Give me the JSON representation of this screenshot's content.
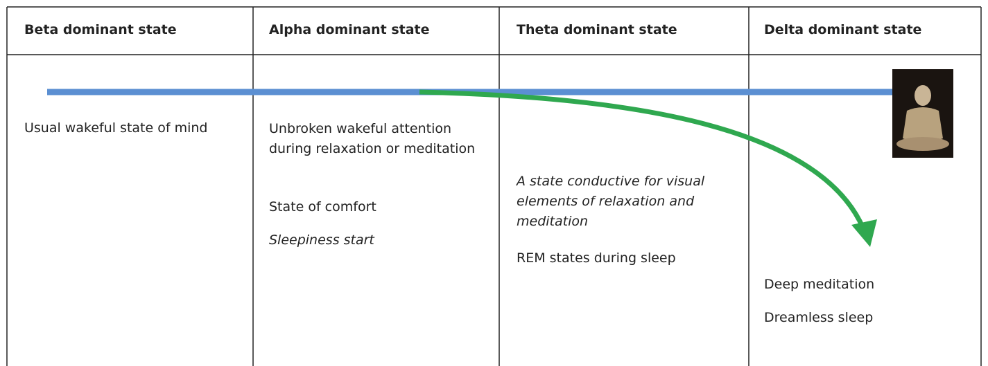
{
  "table": {
    "headers": [
      "Beta dominant state",
      "Alpha dominant state",
      "Theta dominant state",
      "Delta dominant state"
    ],
    "rows": [
      [
        [
          "Usual wakeful state of mind"
        ],
        [
          "Unbroken wakeful attention during relaxation or meditation",
          "State of comfort",
          "Sleepiness start"
        ],
        [
          "A state conductive for visual elements of relaxation and meditation",
          "REM states during sleep"
        ],
        [
          "Deep meditation",
          "Dreamless sleep"
        ]
      ]
    ]
  }
}
